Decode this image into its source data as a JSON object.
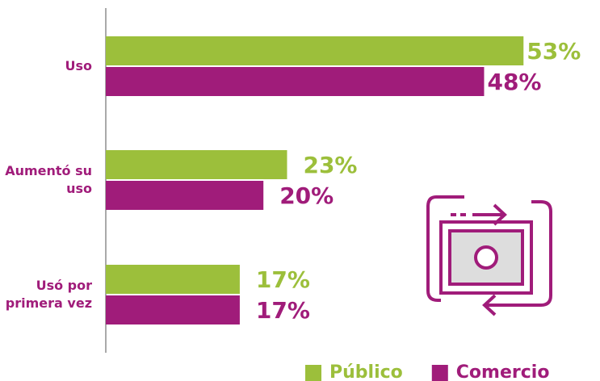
{
  "chart_data": {
    "type": "bar",
    "orientation": "horizontal",
    "categories": [
      "Uso",
      "Aumentó su uso",
      "Usó por primera vez"
    ],
    "series": [
      {
        "name": "Público",
        "color": "#9cbf3b",
        "values": [
          53,
          23,
          17
        ],
        "value_labels": [
          "53%",
          "23%",
          "17%"
        ]
      },
      {
        "name": "Comercio",
        "color": "#a01c7a",
        "values": [
          48,
          20,
          17
        ],
        "value_labels": [
          "48%",
          "20%",
          "17%"
        ]
      }
    ]
  }
}
